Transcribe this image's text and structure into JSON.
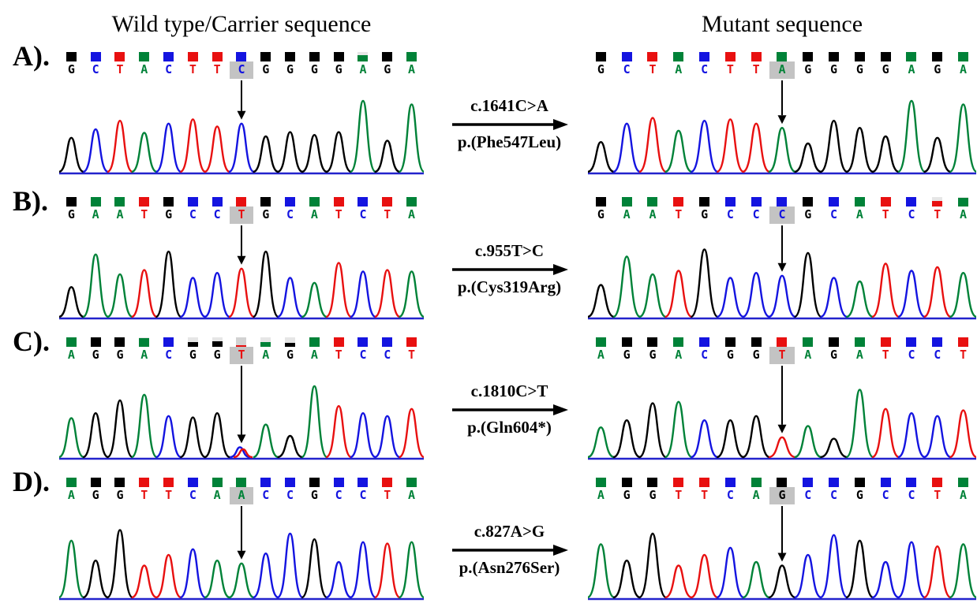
{
  "figure": {
    "left_title": "Wild type/Carrier sequence",
    "right_title": "Mutant sequence"
  },
  "base_colors": {
    "A": "#008238",
    "C": "#1414e0",
    "G": "#000000",
    "T": "#e81010"
  },
  "baseline_color": "#2323cc",
  "highlight_bg": "#c3c3c3",
  "rows": [
    {
      "label": "A).",
      "mutation": {
        "cdna": "c.1641C>A",
        "protein": "p.(Phe547Leu)"
      },
      "wild": {
        "seq": "GCTACTTCGGGGAGA",
        "highlight": 7,
        "heights": [
          0.48,
          0.6,
          0.72,
          0.55,
          0.68,
          0.74,
          0.64,
          0.68,
          0.5,
          0.56,
          0.52,
          0.56,
          1.0,
          0.44,
          0.95
        ],
        "squares": [
          1,
          1,
          1,
          1,
          1,
          1,
          1,
          1,
          1,
          1,
          1,
          1,
          0.65,
          1,
          1
        ]
      },
      "mutant": {
        "seq": "GCTACTTAGGGGAGA",
        "highlight": 7,
        "heights": [
          0.42,
          0.68,
          0.76,
          0.58,
          0.72,
          0.74,
          0.68,
          0.62,
          0.4,
          0.72,
          0.62,
          0.5,
          1.0,
          0.48,
          0.95
        ]
      }
    },
    {
      "label": "B).",
      "mutation": {
        "cdna": "c.955T>C",
        "protein": "p.(Cys319Arg)"
      },
      "wild": {
        "seq": "GAATGCCTGCATCTA",
        "highlight": 7,
        "heights": [
          0.42,
          0.88,
          0.6,
          0.66,
          0.92,
          0.55,
          0.62,
          0.68,
          0.92,
          0.55,
          0.48,
          0.76,
          0.64,
          0.66,
          0.64
        ]
      },
      "mutant": {
        "seq": "GAATGCCCGCATCTA",
        "highlight": 7,
        "heights": [
          0.45,
          0.85,
          0.6,
          0.65,
          0.95,
          0.55,
          0.62,
          0.58,
          0.9,
          0.55,
          0.5,
          0.75,
          0.65,
          0.7,
          0.62
        ],
        "squares": [
          1,
          1,
          1,
          1,
          1,
          1,
          1,
          1,
          1,
          1,
          1,
          1,
          1,
          0.6,
          0.9
        ]
      }
    },
    {
      "label": "C).",
      "mutation": {
        "cdna": "c.1810C>T",
        "protein": "p.(Gln604*)"
      },
      "wild": {
        "seq": "AGGACGGTAGATCCT",
        "highlight": 7,
        "het": true,
        "heights": [
          0.55,
          0.62,
          0.8,
          0.88,
          0.58,
          0.56,
          0.62,
          0.14,
          0.46,
          0.3,
          1.0,
          0.72,
          0.62,
          0.58,
          0.68
        ],
        "squares": [
          1,
          1,
          1,
          0.95,
          1,
          0.5,
          0.55,
          0.15,
          0.5,
          0.4,
          1,
          1,
          1,
          1,
          1
        ]
      },
      "mutant": {
        "seq": "AGGACGGTAGATCCT",
        "highlight": 7,
        "heights": [
          0.42,
          0.52,
          0.76,
          0.78,
          0.52,
          0.52,
          0.58,
          0.28,
          0.44,
          0.26,
          0.95,
          0.68,
          0.62,
          0.58,
          0.66
        ]
      }
    },
    {
      "label": "D).",
      "mutation": {
        "cdna": "c.827A>G",
        "protein": "p.(Asn276Ser)"
      },
      "wild": {
        "seq": "AGGTTCAACCGCCTA",
        "highlight": 7,
        "heights": [
          0.8,
          0.52,
          0.95,
          0.45,
          0.6,
          0.68,
          0.52,
          0.48,
          0.62,
          0.9,
          0.82,
          0.5,
          0.78,
          0.76,
          0.78
        ]
      },
      "mutant": {
        "seq": "AGGTTCAGCCGCCTA",
        "highlight": 7,
        "heights": [
          0.75,
          0.52,
          0.9,
          0.45,
          0.6,
          0.7,
          0.5,
          0.45,
          0.6,
          0.88,
          0.8,
          0.5,
          0.78,
          0.72,
          0.75
        ]
      }
    }
  ]
}
